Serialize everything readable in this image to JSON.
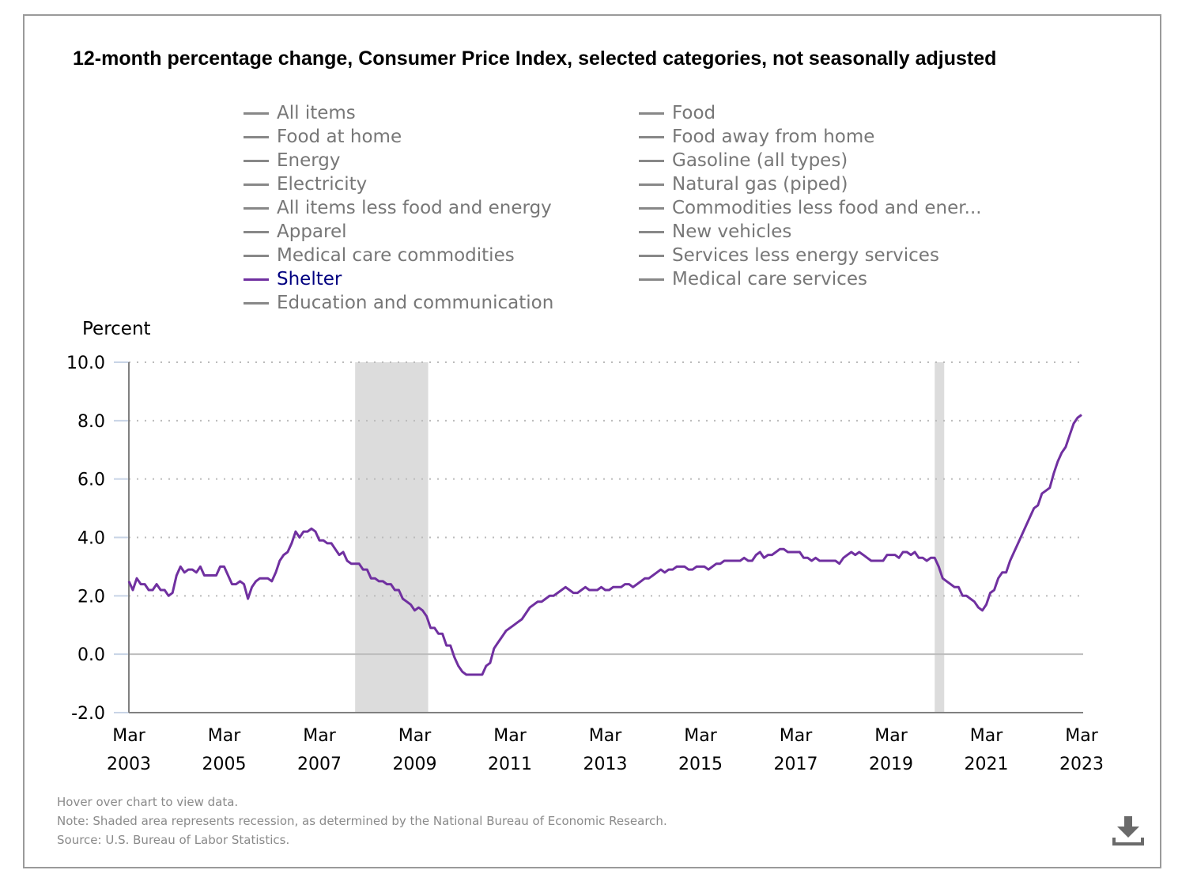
{
  "title": "12-month percentage change, Consumer Price Index, selected categories, not seasonally adjusted",
  "legend": {
    "left": [
      "All items",
      "Food at home",
      "Energy",
      "Electricity",
      "All items less food and energy",
      "Apparel",
      "Medical care commodities",
      "Shelter",
      "Education and communication"
    ],
    "right": [
      "Food",
      "Food away from home",
      "Gasoline (all types)",
      "Natural gas (piped)",
      "Commodities less food and ener...",
      "New vehicles",
      "Services less energy services",
      "Medical care services"
    ],
    "active": "Shelter"
  },
  "colors": {
    "active_series": "#7030a0",
    "active_legend_text": "#000080",
    "inactive_legend": "#777777",
    "recession": "#dcdcdc"
  },
  "footer": {
    "hover": "Hover over chart to view data.",
    "note": "Note: Shaded area represents recession, as determined by the National Bureau of Economic Research.",
    "source": "Source: U.S. Bureau of Labor Statistics."
  },
  "download_icon": "download-icon",
  "chart_data": {
    "type": "line",
    "title": "12-month percentage change, Consumer Price Index, selected categories, not seasonally adjusted",
    "ylabel": "Percent",
    "xlabel": "",
    "ylim": [
      -2.0,
      10.0
    ],
    "yticks": [
      "10.0",
      "8.0",
      "6.0",
      "4.0",
      "2.0",
      "0.0",
      "-2.0"
    ],
    "ytick_values": [
      10,
      8,
      6,
      4,
      2,
      0,
      -2
    ],
    "xticks": [
      {
        "month": "Mar",
        "year": "2003"
      },
      {
        "month": "Mar",
        "year": "2005"
      },
      {
        "month": "Mar",
        "year": "2007"
      },
      {
        "month": "Mar",
        "year": "2009"
      },
      {
        "month": "Mar",
        "year": "2011"
      },
      {
        "month": "Mar",
        "year": "2013"
      },
      {
        "month": "Mar",
        "year": "2015"
      },
      {
        "month": "Mar",
        "year": "2017"
      },
      {
        "month": "Mar",
        "year": "2019"
      },
      {
        "month": "Mar",
        "year": "2021"
      },
      {
        "month": "Mar",
        "year": "2023"
      }
    ],
    "x_start": "2003-03",
    "x_end": "2023-03",
    "grid": true,
    "recessions": [
      {
        "start": "2007-12",
        "end": "2009-06"
      },
      {
        "start": "2020-02",
        "end": "2020-04"
      }
    ],
    "series": [
      {
        "name": "Shelter",
        "values": [
          2.5,
          2.2,
          2.6,
          2.4,
          2.4,
          2.2,
          2.2,
          2.4,
          2.2,
          2.2,
          2.0,
          2.1,
          2.7,
          3.0,
          2.8,
          2.9,
          2.9,
          2.8,
          3.0,
          2.7,
          2.7,
          2.7,
          2.7,
          3.0,
          3.0,
          2.7,
          2.4,
          2.4,
          2.5,
          2.4,
          1.9,
          2.3,
          2.5,
          2.6,
          2.6,
          2.6,
          2.5,
          2.8,
          3.2,
          3.4,
          3.5,
          3.8,
          4.2,
          4.0,
          4.2,
          4.2,
          4.3,
          4.2,
          3.9,
          3.9,
          3.8,
          3.8,
          3.6,
          3.4,
          3.5,
          3.2,
          3.1,
          3.1,
          3.1,
          2.9,
          2.9,
          2.6,
          2.6,
          2.5,
          2.5,
          2.4,
          2.4,
          2.2,
          2.2,
          1.9,
          1.8,
          1.7,
          1.5,
          1.6,
          1.5,
          1.3,
          0.9,
          0.9,
          0.7,
          0.7,
          0.3,
          0.3,
          -0.1,
          -0.4,
          -0.6,
          -0.7,
          -0.7,
          -0.7,
          -0.7,
          -0.7,
          -0.4,
          -0.3,
          0.2,
          0.4,
          0.6,
          0.8,
          0.9,
          1.0,
          1.1,
          1.2,
          1.4,
          1.6,
          1.7,
          1.8,
          1.8,
          1.9,
          2.0,
          2.0,
          2.1,
          2.2,
          2.3,
          2.2,
          2.1,
          2.1,
          2.2,
          2.3,
          2.2,
          2.2,
          2.2,
          2.3,
          2.2,
          2.2,
          2.3,
          2.3,
          2.3,
          2.4,
          2.4,
          2.3,
          2.4,
          2.5,
          2.6,
          2.6,
          2.7,
          2.8,
          2.9,
          2.8,
          2.9,
          2.9,
          3.0,
          3.0,
          3.0,
          2.9,
          2.9,
          3.0,
          3.0,
          3.0,
          2.9,
          3.0,
          3.1,
          3.1,
          3.2,
          3.2,
          3.2,
          3.2,
          3.2,
          3.3,
          3.2,
          3.2,
          3.4,
          3.5,
          3.3,
          3.4,
          3.4,
          3.5,
          3.6,
          3.6,
          3.5,
          3.5,
          3.5,
          3.5,
          3.3,
          3.3,
          3.2,
          3.3,
          3.2,
          3.2,
          3.2,
          3.2,
          3.2,
          3.1,
          3.3,
          3.4,
          3.5,
          3.4,
          3.5,
          3.4,
          3.3,
          3.2,
          3.2,
          3.2,
          3.2,
          3.4,
          3.4,
          3.4,
          3.3,
          3.5,
          3.5,
          3.4,
          3.5,
          3.3,
          3.3,
          3.2,
          3.3,
          3.3,
          3.0,
          2.6,
          2.5,
          2.4,
          2.3,
          2.3,
          2.0,
          2.0,
          1.9,
          1.8,
          1.6,
          1.5,
          1.7,
          2.1,
          2.2,
          2.6,
          2.8,
          2.8,
          3.2,
          3.5,
          3.8,
          4.1,
          4.4,
          4.7,
          5.0,
          5.1,
          5.5,
          5.6,
          5.7,
          6.2,
          6.6,
          6.9,
          7.1,
          7.5,
          7.9,
          8.1,
          8.2
        ]
      }
    ]
  }
}
